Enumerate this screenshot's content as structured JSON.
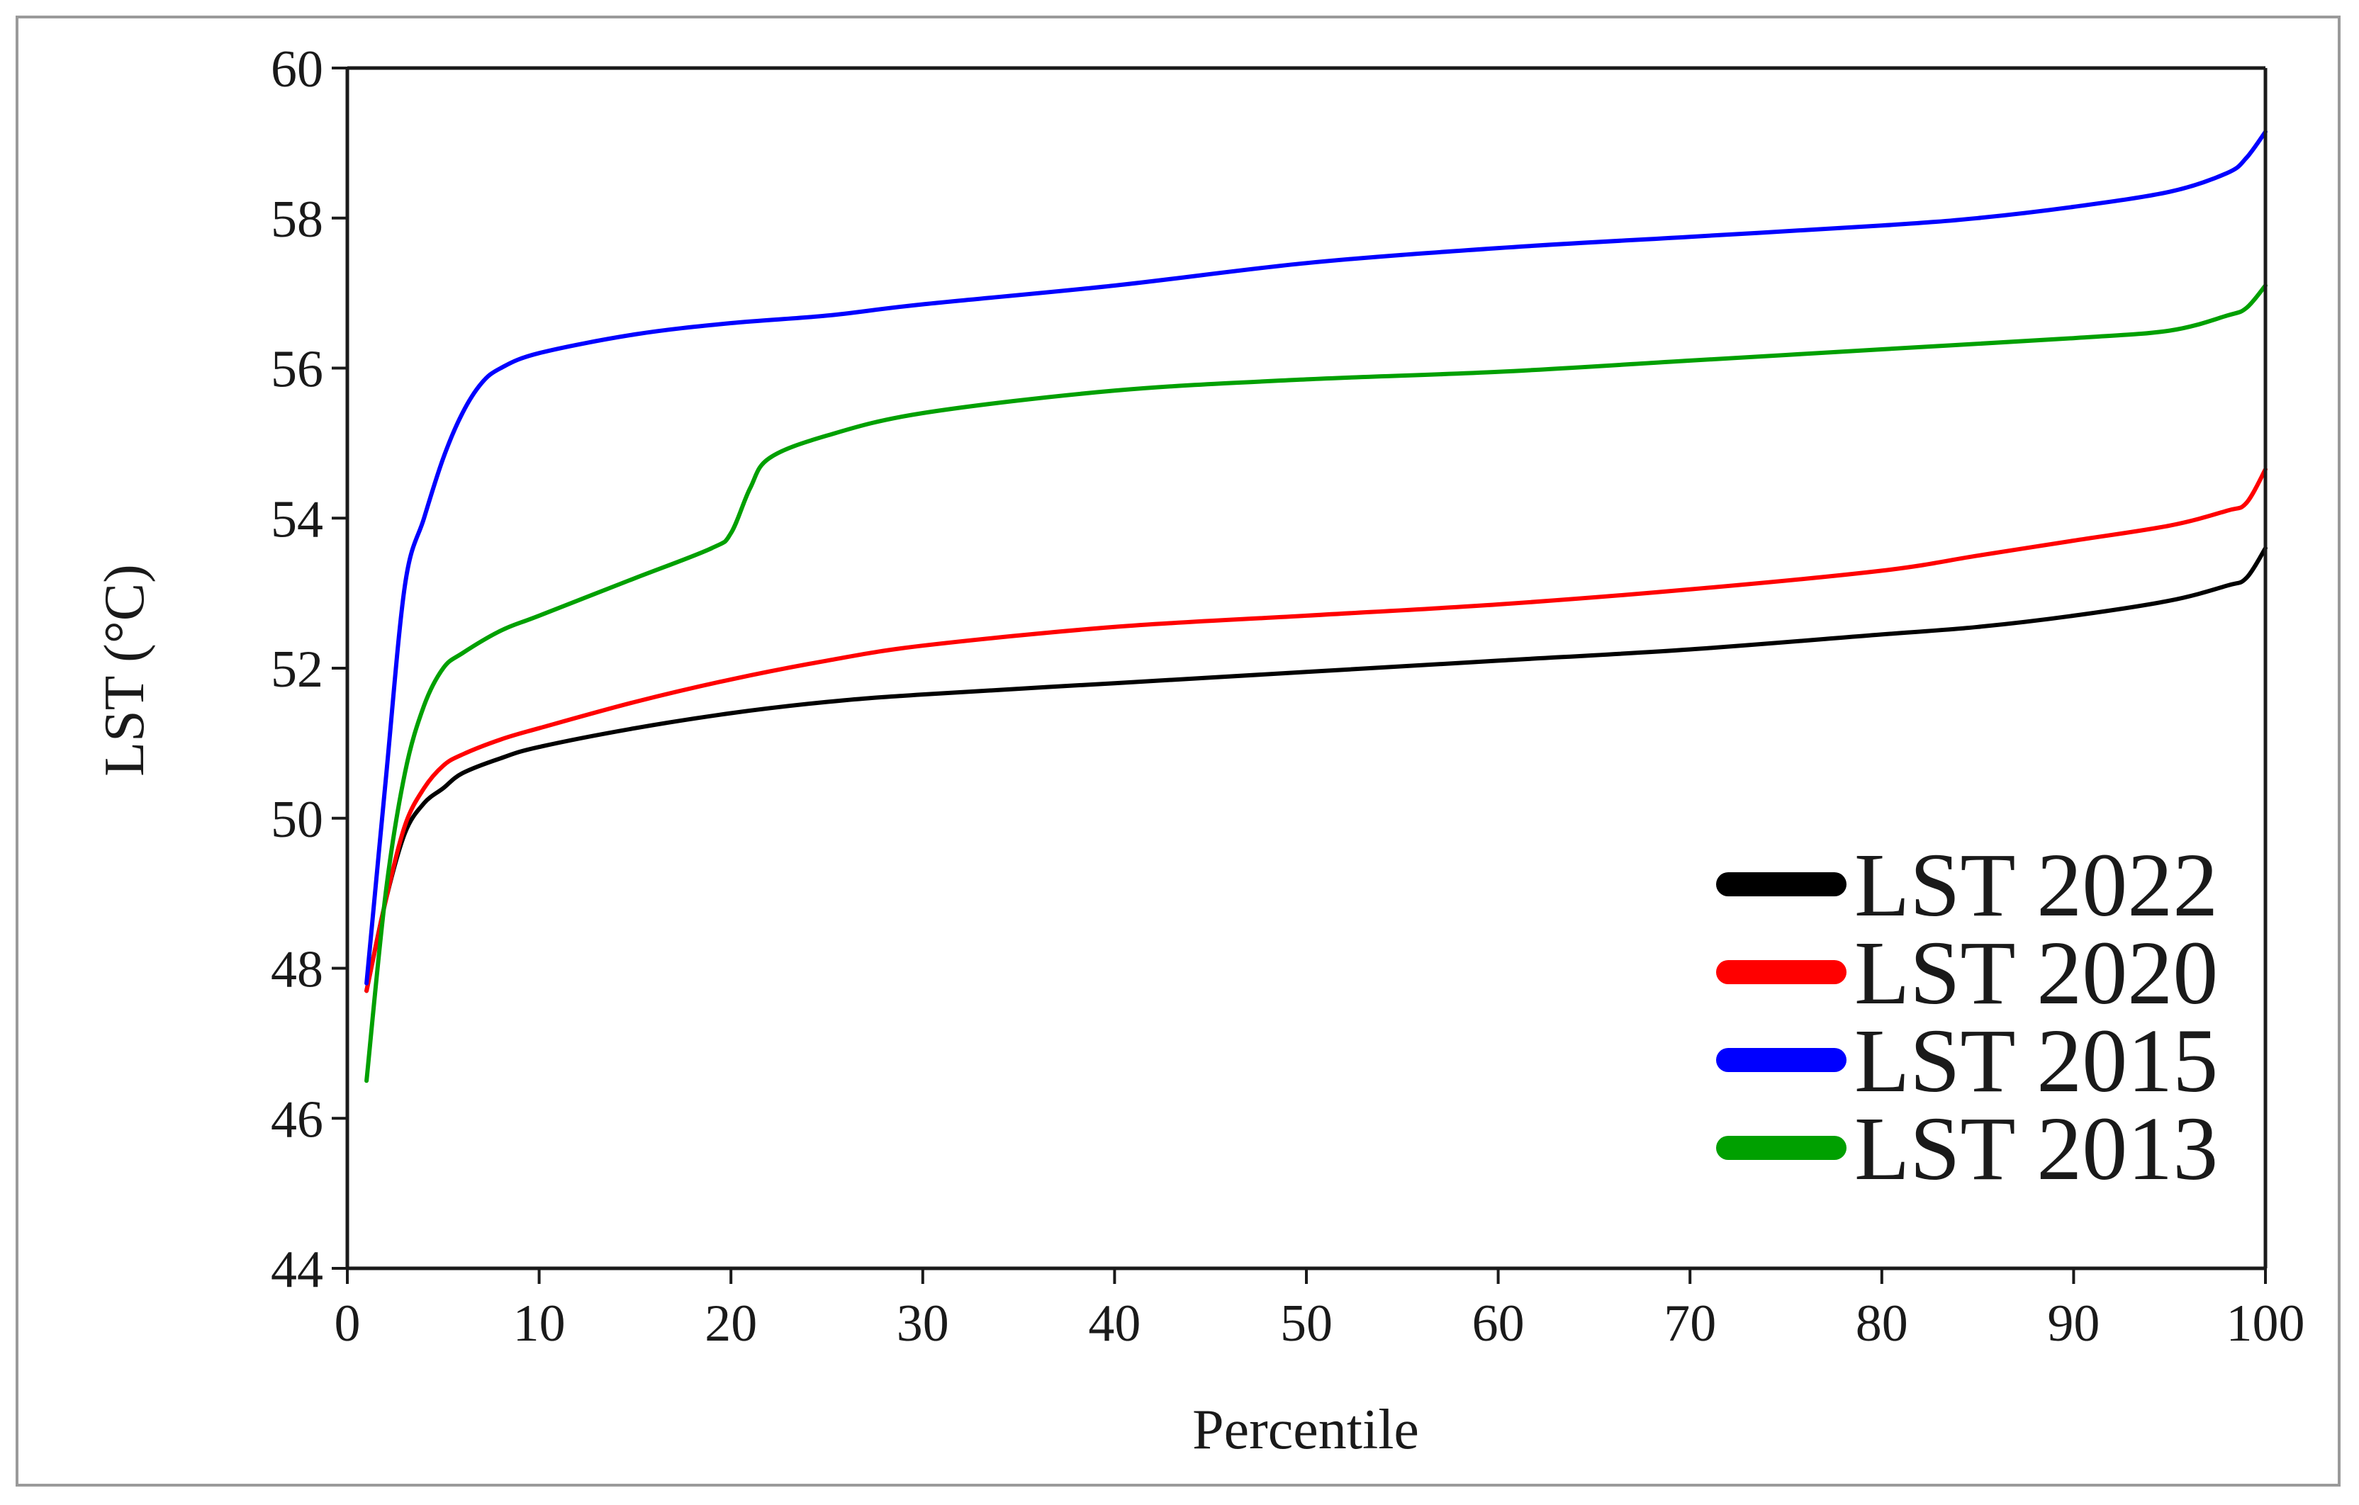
{
  "chart_data": {
    "type": "line",
    "title": "",
    "xlabel": "Percentile",
    "ylabel": "LST (°C)",
    "xlim": [
      0,
      100
    ],
    "ylim": [
      44,
      60
    ],
    "x_ticks": [
      0,
      10,
      20,
      30,
      40,
      50,
      60,
      70,
      80,
      90,
      100
    ],
    "y_ticks": [
      44,
      46,
      48,
      50,
      52,
      54,
      56,
      58,
      60
    ],
    "grid": false,
    "legend_position": "bottom-right",
    "series": [
      {
        "name": "LST 2022",
        "color": "#000000",
        "x": [
          1,
          2,
          3,
          4,
          5,
          6,
          8,
          10,
          15,
          20,
          25,
          30,
          40,
          50,
          60,
          70,
          80,
          85,
          90,
          95,
          98,
          99,
          100
        ],
        "y": [
          47.7,
          48.9,
          49.8,
          50.2,
          50.4,
          50.6,
          50.8,
          50.95,
          51.2,
          51.4,
          51.55,
          51.65,
          51.8,
          51.95,
          52.1,
          52.25,
          52.45,
          52.55,
          52.7,
          52.9,
          53.1,
          53.2,
          53.6
        ]
      },
      {
        "name": "LST 2020",
        "color": "#ff0000",
        "x": [
          1,
          2,
          3,
          4,
          5,
          6,
          8,
          10,
          15,
          20,
          25,
          30,
          40,
          50,
          60,
          70,
          80,
          85,
          90,
          95,
          98,
          99,
          100
        ],
        "y": [
          47.7,
          48.9,
          49.9,
          50.4,
          50.7,
          50.85,
          51.05,
          51.2,
          51.55,
          51.85,
          52.1,
          52.3,
          52.55,
          52.7,
          52.85,
          53.05,
          53.3,
          53.5,
          53.7,
          53.9,
          54.1,
          54.2,
          54.65
        ]
      },
      {
        "name": "LST 2015",
        "color": "#0000ff",
        "x": [
          1,
          2,
          3,
          4,
          5,
          6,
          7,
          8,
          10,
          15,
          20,
          25,
          30,
          40,
          50,
          60,
          70,
          80,
          85,
          90,
          95,
          98,
          99,
          100
        ],
        "y": [
          47.8,
          50.5,
          53.1,
          54.0,
          54.8,
          55.4,
          55.8,
          56.0,
          56.2,
          56.45,
          56.6,
          56.7,
          56.85,
          57.1,
          57.4,
          57.6,
          57.75,
          57.9,
          58.0,
          58.15,
          58.35,
          58.6,
          58.8,
          59.15
        ]
      },
      {
        "name": "LST 2013",
        "color": "#00a000",
        "x": [
          1,
          2,
          3,
          4,
          5,
          6,
          8,
          10,
          15,
          19,
          20,
          21,
          22,
          25,
          30,
          40,
          50,
          60,
          70,
          80,
          90,
          95,
          98,
          99,
          100
        ],
        "y": [
          46.5,
          49.0,
          50.6,
          51.5,
          52.0,
          52.2,
          52.5,
          52.7,
          53.2,
          53.6,
          53.8,
          54.4,
          54.8,
          55.1,
          55.4,
          55.7,
          55.85,
          55.95,
          56.1,
          56.25,
          56.4,
          56.5,
          56.7,
          56.8,
          57.1
        ]
      }
    ]
  }
}
